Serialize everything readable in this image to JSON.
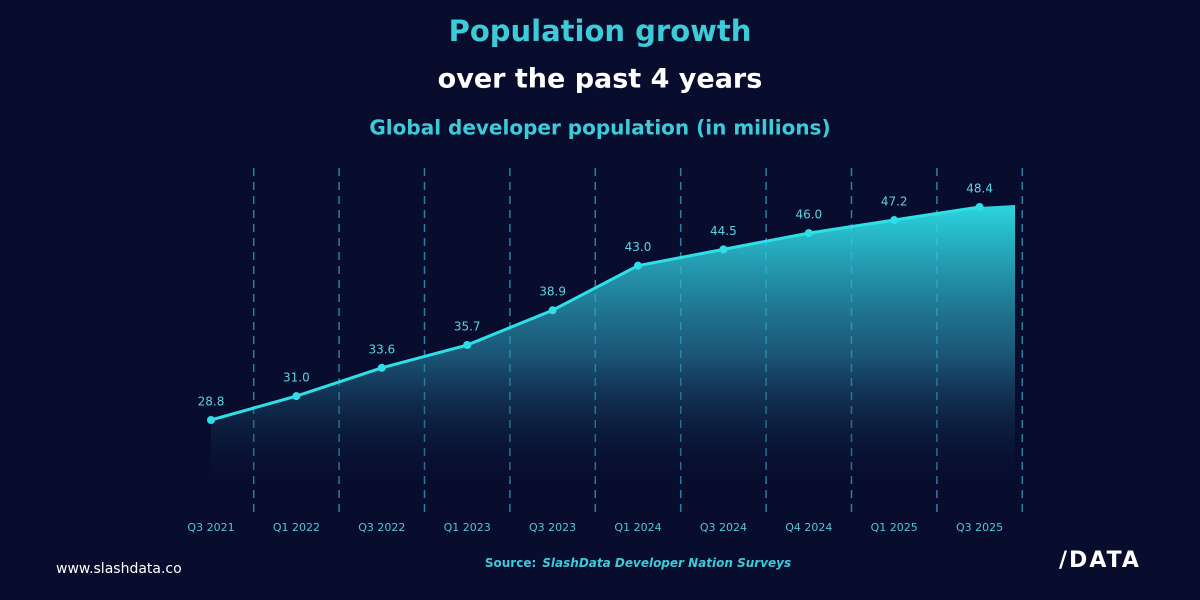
{
  "chart_data": {
    "type": "area",
    "title": "Population growth",
    "subtitle": "over the past 4 years",
    "chart_title": "Global developer population (in millions)",
    "categories": [
      "Q3 2021",
      "Q1 2022",
      "Q3 2022",
      "Q1 2023",
      "Q3 2023",
      "Q1 2024",
      "Q3 2024",
      "Q4 2024",
      "Q1 2025",
      "Q3 2025"
    ],
    "values": [
      28.8,
      31.0,
      33.6,
      35.7,
      38.9,
      43.0,
      44.5,
      46.0,
      47.2,
      48.4
    ],
    "value_labels": [
      "28.8",
      "31.0",
      "33.6",
      "35.7",
      "38.9",
      "43.0",
      "44.5",
      "46.0",
      "47.2",
      "48.4"
    ],
    "color": "#2de0e8",
    "source_label": "Source:",
    "source": "SlashData Developer Nation Surveys",
    "website": "www.slashdata.co",
    "logo": "/DATA"
  }
}
